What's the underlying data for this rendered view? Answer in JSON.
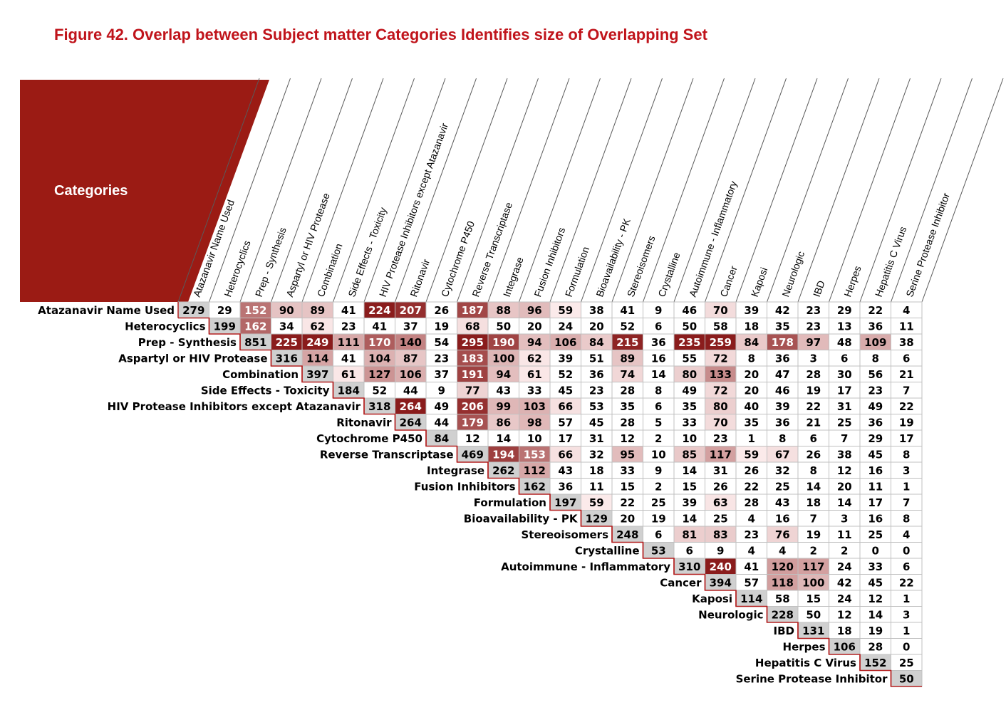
{
  "figure": {
    "title": "Figure 42. Overlap between Subject matter Categories Identifies size of Overlapping Set"
  },
  "colors": {
    "title": "#c0141b",
    "header_fill": "#9b1b14",
    "diagonal_fill": "#d0d0d0",
    "heat_high": "#8a1c1c",
    "grid": "#c0c0c0",
    "diagonal_border": "#b42020"
  },
  "chart_data": {
    "type": "heatmap",
    "corner_label": "Categories",
    "categories": [
      "Atazanavir Name Used",
      "Heterocyclics",
      "Prep - Synthesis",
      "Aspartyl or HIV Protease",
      "Combination",
      "Side Effects - Toxicity",
      "HIV Protease Inhibitors except Atazanavir",
      "Ritonavir",
      "Cytochrome P450",
      "Reverse Transcriptase",
      "Integrase",
      "Fusion Inhibitors",
      "Formulation",
      "Bioavailability - PK",
      "Stereoisomers",
      "Crystalline",
      "Autoimmune - Inflammatory",
      "Cancer",
      "Kaposi",
      "Neurologic",
      "IBD",
      "Herpes",
      "Hepatitis C Virus",
      "Serine Protease Inhibitor"
    ],
    "matrix": [
      [
        279,
        29,
        152,
        90,
        89,
        41,
        224,
        207,
        26,
        187,
        88,
        96,
        59,
        38,
        41,
        9,
        46,
        70,
        39,
        42,
        23,
        29,
        22,
        4
      ],
      [
        199,
        162,
        34,
        62,
        23,
        41,
        37,
        19,
        68,
        50,
        20,
        24,
        20,
        52,
        6,
        50,
        58,
        18,
        35,
        23,
        13,
        36,
        11
      ],
      [
        851,
        225,
        249,
        111,
        170,
        140,
        54,
        295,
        190,
        94,
        106,
        84,
        215,
        36,
        235,
        259,
        84,
        178,
        97,
        48,
        109,
        38
      ],
      [
        316,
        114,
        41,
        104,
        87,
        23,
        183,
        100,
        62,
        39,
        51,
        89,
        16,
        55,
        72,
        8,
        36,
        3,
        6,
        8,
        6
      ],
      [
        397,
        61,
        127,
        106,
        37,
        191,
        94,
        61,
        52,
        36,
        74,
        14,
        80,
        133,
        20,
        47,
        28,
        30,
        56,
        21
      ],
      [
        184,
        52,
        44,
        9,
        77,
        43,
        33,
        45,
        23,
        28,
        8,
        49,
        72,
        20,
        46,
        19,
        17,
        23,
        7
      ],
      [
        318,
        264,
        49,
        206,
        99,
        103,
        66,
        53,
        35,
        6,
        35,
        80,
        40,
        39,
        22,
        31,
        49,
        22
      ],
      [
        264,
        44,
        179,
        86,
        98,
        57,
        45,
        28,
        5,
        33,
        70,
        35,
        36,
        21,
        25,
        36,
        19
      ],
      [
        84,
        12,
        14,
        10,
        17,
        31,
        12,
        2,
        10,
        23,
        1,
        8,
        6,
        7,
        29,
        17
      ],
      [
        469,
        194,
        153,
        66,
        32,
        95,
        10,
        85,
        117,
        59,
        67,
        26,
        38,
        45,
        8
      ],
      [
        262,
        112,
        43,
        18,
        33,
        9,
        14,
        31,
        26,
        32,
        8,
        12,
        16,
        3
      ],
      [
        162,
        36,
        11,
        15,
        2,
        15,
        26,
        22,
        25,
        14,
        20,
        11,
        1
      ],
      [
        197,
        59,
        22,
        25,
        39,
        63,
        28,
        43,
        18,
        14,
        17,
        7
      ],
      [
        129,
        20,
        19,
        14,
        25,
        4,
        16,
        7,
        3,
        16,
        8
      ],
      [
        248,
        6,
        81,
        83,
        23,
        76,
        19,
        11,
        25,
        4
      ],
      [
        53,
        6,
        9,
        4,
        4,
        2,
        2,
        0,
        0
      ],
      [
        310,
        240,
        41,
        120,
        117,
        24,
        33,
        6
      ],
      [
        394,
        57,
        118,
        100,
        42,
        45,
        22
      ],
      [
        114,
        58,
        15,
        24,
        12,
        1
      ],
      [
        228,
        50,
        12,
        14,
        3
      ],
      [
        131,
        18,
        19,
        1
      ],
      [
        106,
        28,
        0
      ],
      [
        152,
        25
      ],
      [
        50
      ]
    ]
  }
}
